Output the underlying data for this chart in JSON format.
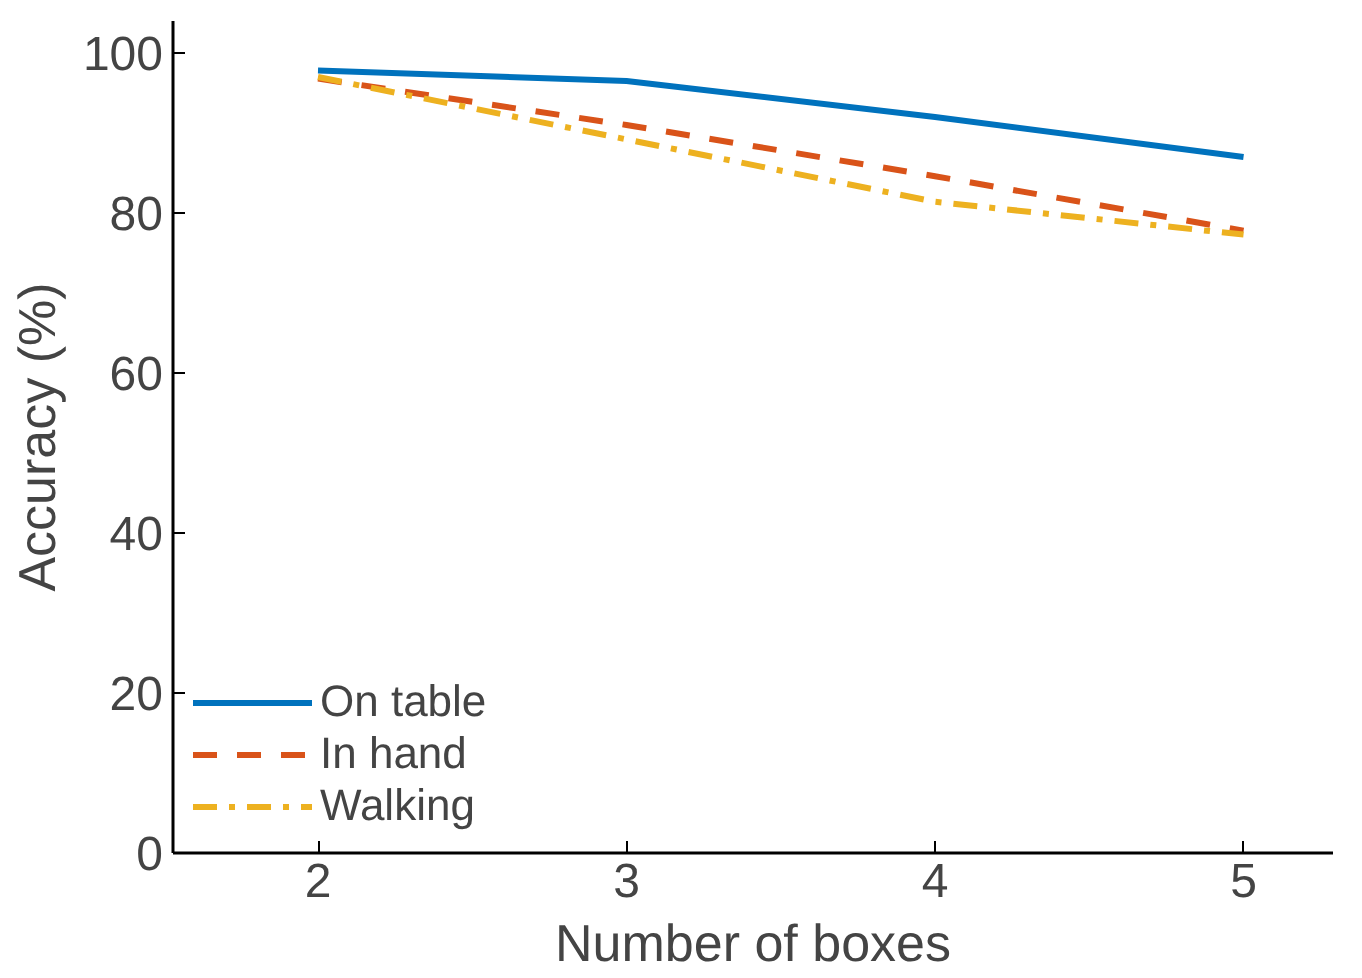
{
  "chart_data": {
    "type": "line",
    "xlabel": "Number of boxes",
    "ylabel": "Accuracy (%)",
    "x": [
      2,
      3,
      4,
      5
    ],
    "xlim": [
      1.53,
      5.29
    ],
    "xticks": [
      2,
      3,
      4,
      5
    ],
    "ylim": [
      0,
      104
    ],
    "yticks": [
      0,
      20,
      40,
      60,
      80,
      100
    ],
    "grid": false,
    "legend": "bottom left",
    "series": [
      {
        "name": "On table",
        "color": "#0072bd",
        "line_style": "solid",
        "values": [
          97.8,
          96.5,
          92,
          87
        ]
      },
      {
        "name": "In hand",
        "color": "#d95319",
        "line_style": "dashed",
        "values": [
          96.8,
          91,
          84.6,
          77.8
        ]
      },
      {
        "name": "Walking",
        "color": "#edb120",
        "line_style": "dashdot",
        "values": [
          97,
          89.2,
          81.4,
          77.3
        ]
      }
    ]
  }
}
